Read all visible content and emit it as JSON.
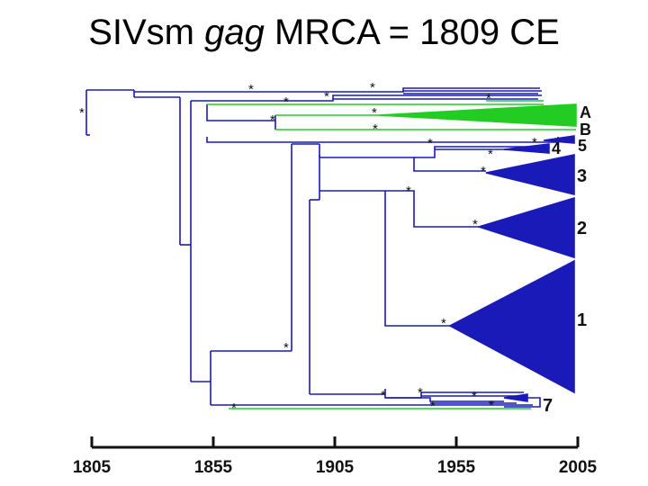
{
  "title": {
    "prefix": "SIVsm ",
    "gene": "gag",
    "suffix": " MRCA = 1809 CE"
  },
  "colors": {
    "blue": "#1a1ab8",
    "green": "#22cc22",
    "axis": "#111111"
  },
  "clades": [
    {
      "label": "A",
      "color": "green"
    },
    {
      "label": "B",
      "color": "green"
    },
    {
      "label": "5",
      "color": "blue"
    },
    {
      "label": "4",
      "color": "blue"
    },
    {
      "label": "3",
      "color": "blue"
    },
    {
      "label": "2",
      "color": "blue"
    },
    {
      "label": "1",
      "color": "blue"
    },
    {
      "label": "7",
      "color": "blue"
    }
  ],
  "support_marker": "*",
  "axis": {
    "unit": "CE",
    "range": [
      1805,
      2005
    ],
    "ticks": [
      "1805",
      "1855",
      "1905",
      "1955",
      "2005"
    ]
  }
}
